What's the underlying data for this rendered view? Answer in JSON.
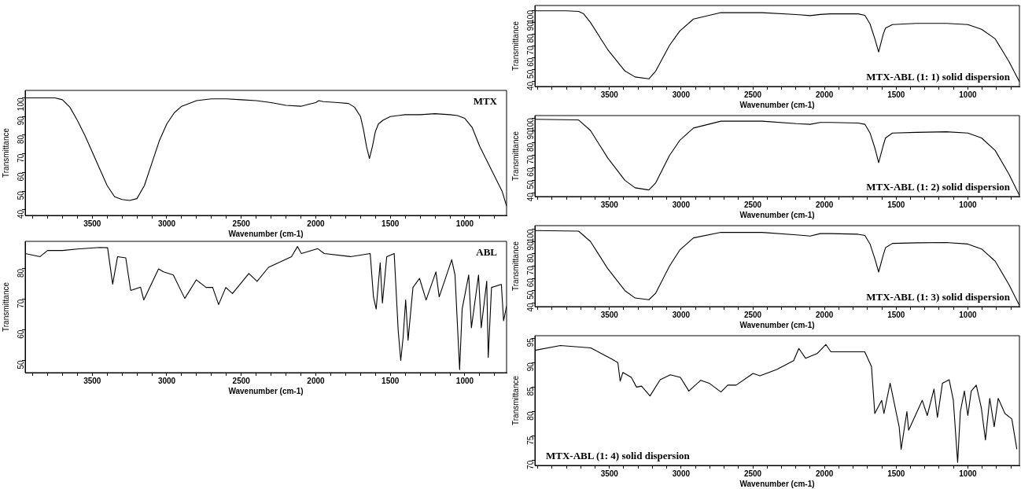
{
  "chart_data": [
    {
      "type": "line",
      "title": "MTX",
      "xlabel": "Wavenumber (cm-1)",
      "ylabel": "Transmittance",
      "marker": "none",
      "xlim": [
        3950,
        720
      ],
      "ylim": [
        37,
        104
      ],
      "xticks": [
        {
          "value": 3900,
          "label": null
        },
        {
          "value": 3800,
          "label": null
        },
        {
          "value": 3700,
          "label": null
        },
        {
          "value": 3600,
          "label": null
        },
        3500,
        {
          "value": 3400,
          "label": null
        },
        {
          "value": 3300,
          "label": null
        },
        {
          "value": 3200,
          "label": null
        },
        {
          "value": 3100,
          "label": null
        },
        3000,
        {
          "value": 2900,
          "label": null
        },
        {
          "value": 2800,
          "label": null
        },
        {
          "value": 2700,
          "label": null
        },
        {
          "value": 2600,
          "label": null
        },
        2500,
        {
          "value": 2400,
          "label": null
        },
        {
          "value": 2300,
          "label": null
        },
        {
          "value": 2200,
          "label": null
        },
        {
          "value": 2100,
          "label": null
        },
        2000,
        {
          "value": 1900,
          "label": null
        },
        {
          "value": 1800,
          "label": null
        },
        {
          "value": 1700,
          "label": null
        },
        {
          "value": 1600,
          "label": null
        },
        1500,
        {
          "value": 1400,
          "label": null
        },
        {
          "value": 1300,
          "label": null
        },
        {
          "value": 1200,
          "label": null
        },
        {
          "value": 1100,
          "label": null
        },
        1000,
        {
          "value": 900,
          "label": null
        },
        {
          "value": 800,
          "label": null
        }
      ],
      "yticks": [
        40,
        50,
        60,
        70,
        80,
        90,
        100
      ],
      "series": [
        {
          "color": "#000000",
          "x": [
            3950,
            3800,
            3750,
            3700,
            3650,
            3600,
            3550,
            3500,
            3450,
            3400,
            3350,
            3300,
            3250,
            3200,
            3150,
            3100,
            3050,
            3000,
            2950,
            2900,
            2800,
            2700,
            2600,
            2500,
            2400,
            2300,
            2200,
            2100,
            2050,
            2000,
            1980,
            1950,
            1850,
            1780,
            1740,
            1700,
            1680,
            1660,
            1640,
            1620,
            1600,
            1580,
            1550,
            1500,
            1400,
            1300,
            1200,
            1100,
            1050,
            1000,
            950,
            900,
            850,
            800,
            750,
            720
          ],
          "values": [
            100,
            100,
            100,
            99,
            95,
            88,
            80,
            71,
            62,
            53,
            47,
            45.5,
            45,
            46,
            53,
            65,
            77,
            86,
            92,
            95.5,
            98.5,
            99.5,
            99.5,
            99,
            98.5,
            97.5,
            96,
            95.5,
            96.5,
            97.5,
            98.5,
            98,
            97.5,
            97,
            95,
            90,
            83,
            74,
            67.5,
            74,
            82,
            86,
            88,
            90,
            91,
            91,
            91.5,
            91,
            90.5,
            89,
            84,
            74,
            66,
            58,
            50,
            42
          ]
        }
      ]
    },
    {
      "type": "line",
      "title": "ABL",
      "xlabel": "Wavenumber (cm-1)",
      "ylabel": "Transmittance",
      "marker": "none",
      "xlim": [
        3950,
        720
      ],
      "ylim": [
        46,
        89
      ],
      "xticks": [
        {
          "value": 3900,
          "label": null
        },
        {
          "value": 3800,
          "label": null
        },
        {
          "value": 3700,
          "label": null
        },
        {
          "value": 3600,
          "label": null
        },
        3500,
        {
          "value": 3400,
          "label": null
        },
        {
          "value": 3300,
          "label": null
        },
        {
          "value": 3200,
          "label": null
        },
        {
          "value": 3100,
          "label": null
        },
        3000,
        {
          "value": 2900,
          "label": null
        },
        {
          "value": 2800,
          "label": null
        },
        {
          "value": 2700,
          "label": null
        },
        {
          "value": 2600,
          "label": null
        },
        2500,
        {
          "value": 2400,
          "label": null
        },
        {
          "value": 2300,
          "label": null
        },
        {
          "value": 2200,
          "label": null
        },
        {
          "value": 2100,
          "label": null
        },
        2000,
        {
          "value": 1900,
          "label": null
        },
        {
          "value": 1800,
          "label": null
        },
        {
          "value": 1700,
          "label": null
        },
        {
          "value": 1600,
          "label": null
        },
        1500,
        {
          "value": 1400,
          "label": null
        },
        {
          "value": 1300,
          "label": null
        },
        {
          "value": 1200,
          "label": null
        },
        {
          "value": 1100,
          "label": null
        },
        1000,
        {
          "value": 900,
          "label": null
        },
        {
          "value": 800,
          "label": null
        }
      ],
      "yticks": [
        50,
        60,
        70,
        80
      ],
      "series": [
        {
          "color": "#000000",
          "x": [
            3950,
            3850,
            3800,
            3700,
            3600,
            3450,
            3397,
            3363,
            3330,
            3275,
            3242,
            3176,
            3154,
            3055,
            3022,
            2956,
            2879,
            2802,
            2736,
            2692,
            2652,
            2604,
            2559,
            2449,
            2394,
            2317,
            2163,
            2123,
            2097,
            1987,
            1943,
            1767,
            1635,
            1613,
            1595,
            1568,
            1553,
            1524,
            1474,
            1447,
            1430,
            1414,
            1397,
            1381,
            1348,
            1304,
            1260,
            1194,
            1172,
            1088,
            1066,
            1035,
            1018,
            974,
            956,
            908,
            890,
            853,
            843,
            821,
            755,
            740,
            720
          ],
          "values": [
            85,
            84,
            86,
            86,
            86.5,
            87,
            86.9,
            75,
            84,
            83.6,
            72.9,
            74,
            69.8,
            80,
            79,
            78,
            70.3,
            76.4,
            73.9,
            73.9,
            68.3,
            73.9,
            71.9,
            78.5,
            75.9,
            80.5,
            84,
            87.3,
            85,
            86.6,
            85,
            84,
            85,
            70.8,
            66.8,
            82,
            68.8,
            84,
            85,
            59.7,
            50,
            57.6,
            69.8,
            56.6,
            73.9,
            76.9,
            69.8,
            79,
            70.8,
            83,
            78,
            47,
            66.8,
            78,
            60.7,
            78,
            60.7,
            76,
            51,
            73.9,
            74.9,
            63,
            67.8
          ]
        }
      ]
    },
    {
      "type": "line",
      "title": "MTX-ABL (1: 1) solid dispersion",
      "xlabel": "Wavenumber (cm-1)",
      "ylabel": "Transmittance",
      "marker": "none",
      "xlim": [
        4020,
        640
      ],
      "ylim": [
        36,
        104
      ],
      "xticks": [
        {
          "value": 4000,
          "label": null
        },
        {
          "value": 3900,
          "label": null
        },
        {
          "value": 3800,
          "label": null
        },
        {
          "value": 3700,
          "label": null
        },
        {
          "value": 3600,
          "label": null
        },
        3500,
        {
          "value": 3400,
          "label": null
        },
        {
          "value": 3300,
          "label": null
        },
        {
          "value": 3200,
          "label": null
        },
        {
          "value": 3100,
          "label": null
        },
        3000,
        {
          "value": 2900,
          "label": null
        },
        {
          "value": 2800,
          "label": null
        },
        {
          "value": 2700,
          "label": null
        },
        {
          "value": 2600,
          "label": null
        },
        2500,
        {
          "value": 2400,
          "label": null
        },
        {
          "value": 2300,
          "label": null
        },
        {
          "value": 2200,
          "label": null
        },
        {
          "value": 2100,
          "label": null
        },
        2000,
        {
          "value": 1900,
          "label": null
        },
        {
          "value": 1800,
          "label": null
        },
        {
          "value": 1700,
          "label": null
        },
        {
          "value": 1600,
          "label": null
        },
        1500,
        {
          "value": 1400,
          "label": null
        },
        {
          "value": 1300,
          "label": null
        },
        {
          "value": 1200,
          "label": null
        },
        {
          "value": 1100,
          "label": null
        },
        1000,
        {
          "value": 900,
          "label": null
        },
        {
          "value": 800,
          "label": null
        },
        {
          "value": 700,
          "label": null
        }
      ],
      "yticks": [
        40,
        50,
        60,
        70,
        80,
        90,
        100
      ],
      "series": [
        {
          "color": "#000000",
          "x": [
            4020,
            3800,
            3715,
            3680,
            3632,
            3512,
            3392,
            3321,
            3225,
            3177,
            3081,
            3010,
            2914,
            2722,
            2435,
            2196,
            2100,
            2029,
            1957,
            1766,
            1718,
            1682,
            1646,
            1622,
            1590,
            1574,
            1526,
            1359,
            1150,
            1000,
            904,
            809,
            713,
            640
          ],
          "values": [
            99.5,
            99.5,
            99,
            97,
            89.7,
            67,
            49,
            44,
            42.4,
            49,
            70.5,
            82.5,
            92.6,
            98,
            98,
            96.4,
            95.5,
            96.5,
            97,
            97,
            95.7,
            88.5,
            75,
            65,
            80,
            85,
            88,
            89,
            89,
            88,
            84,
            76,
            57,
            40
          ]
        }
      ]
    },
    {
      "type": "line",
      "title": "MTX-ABL (1: 2) solid dispersion",
      "xlabel": "Wavenumber (cm-1)",
      "ylabel": "Transmittance",
      "marker": "none",
      "xlim": [
        4020,
        640
      ],
      "ylim": [
        37,
        102
      ],
      "xticks": [
        {
          "value": 4000,
          "label": null
        },
        {
          "value": 3900,
          "label": null
        },
        {
          "value": 3800,
          "label": null
        },
        {
          "value": 3700,
          "label": null
        },
        {
          "value": 3600,
          "label": null
        },
        3500,
        {
          "value": 3400,
          "label": null
        },
        {
          "value": 3300,
          "label": null
        },
        {
          "value": 3200,
          "label": null
        },
        {
          "value": 3100,
          "label": null
        },
        3000,
        {
          "value": 2900,
          "label": null
        },
        {
          "value": 2800,
          "label": null
        },
        {
          "value": 2700,
          "label": null
        },
        {
          "value": 2600,
          "label": null
        },
        2500,
        {
          "value": 2400,
          "label": null
        },
        {
          "value": 2300,
          "label": null
        },
        {
          "value": 2200,
          "label": null
        },
        {
          "value": 2100,
          "label": null
        },
        2000,
        {
          "value": 1900,
          "label": null
        },
        {
          "value": 1800,
          "label": null
        },
        {
          "value": 1700,
          "label": null
        },
        {
          "value": 1600,
          "label": null
        },
        1500,
        {
          "value": 1400,
          "label": null
        },
        {
          "value": 1300,
          "label": null
        },
        {
          "value": 1200,
          "label": null
        },
        {
          "value": 1100,
          "label": null
        },
        1000,
        {
          "value": 900,
          "label": null
        },
        {
          "value": 800,
          "label": null
        },
        {
          "value": 700,
          "label": null
        }
      ],
      "yticks": [
        40,
        50,
        60,
        70,
        80,
        90,
        100
      ],
      "series": [
        {
          "color": "#000000",
          "x": [
            4020,
            3715,
            3632,
            3512,
            3392,
            3321,
            3225,
            3177,
            3081,
            3010,
            2914,
            2722,
            2435,
            2196,
            2100,
            2029,
            1957,
            1766,
            1718,
            1682,
            1646,
            1622,
            1590,
            1574,
            1526,
            1359,
            1150,
            1000,
            904,
            809,
            713,
            640
          ],
          "values": [
            99,
            98.5,
            90,
            68,
            50,
            44,
            42.3,
            48,
            70,
            82,
            92,
            97.5,
            97.5,
            95.5,
            95,
            96.5,
            96.5,
            96,
            95,
            88,
            75,
            64.2,
            78,
            84,
            88,
            88.5,
            89,
            88,
            84,
            74,
            55,
            38
          ]
        }
      ]
    },
    {
      "type": "line",
      "title": "MTX-ABL (1: 3) solid dispersion",
      "xlabel": "Wavenumber (cm-1)",
      "ylabel": "Transmittance",
      "marker": "none",
      "xlim": [
        4020,
        640
      ],
      "ylim": [
        37,
        103
      ],
      "xticks": [
        {
          "value": 4000,
          "label": null
        },
        {
          "value": 3900,
          "label": null
        },
        {
          "value": 3800,
          "label": null
        },
        {
          "value": 3700,
          "label": null
        },
        {
          "value": 3600,
          "label": null
        },
        3500,
        {
          "value": 3400,
          "label": null
        },
        {
          "value": 3300,
          "label": null
        },
        {
          "value": 3200,
          "label": null
        },
        {
          "value": 3100,
          "label": null
        },
        3000,
        {
          "value": 2900,
          "label": null
        },
        {
          "value": 2800,
          "label": null
        },
        {
          "value": 2700,
          "label": null
        },
        {
          "value": 2600,
          "label": null
        },
        2500,
        {
          "value": 2400,
          "label": null
        },
        {
          "value": 2300,
          "label": null
        },
        {
          "value": 2200,
          "label": null
        },
        {
          "value": 2100,
          "label": null
        },
        2000,
        {
          "value": 1900,
          "label": null
        },
        {
          "value": 1800,
          "label": null
        },
        {
          "value": 1700,
          "label": null
        },
        {
          "value": 1600,
          "label": null
        },
        1500,
        {
          "value": 1400,
          "label": null
        },
        {
          "value": 1300,
          "label": null
        },
        {
          "value": 1200,
          "label": null
        },
        {
          "value": 1100,
          "label": null
        },
        1000,
        {
          "value": 900,
          "label": null
        },
        {
          "value": 800,
          "label": null
        },
        {
          "value": 700,
          "label": null
        }
      ],
      "yticks": [
        40,
        50,
        60,
        70,
        80,
        90,
        100
      ],
      "series": [
        {
          "color": "#000000",
          "x": [
            4020,
            3715,
            3632,
            3512,
            3392,
            3321,
            3225,
            3177,
            3081,
            3010,
            2914,
            2722,
            2435,
            2196,
            2100,
            2029,
            1957,
            1766,
            1718,
            1682,
            1646,
            1622,
            1590,
            1574,
            1526,
            1359,
            1150,
            1000,
            904,
            809,
            713,
            640
          ],
          "values": [
            99,
            98.5,
            90,
            68,
            50,
            44,
            42.6,
            48,
            70,
            83,
            93,
            97.5,
            97.5,
            95.5,
            94.5,
            96.5,
            96.5,
            96,
            95,
            88,
            75,
            65.2,
            79,
            85,
            88.5,
            89,
            89.2,
            88,
            84,
            74,
            55,
            38
          ]
        }
      ]
    },
    {
      "type": "line",
      "title": "MTX-ABL (1: 4) solid dispersion",
      "xlabel": "Wavenumber (cm-1)",
      "ylabel": "Transmittance",
      "marker": "none",
      "xlim": [
        4020,
        640
      ],
      "ylim": [
        69,
        95.5
      ],
      "xticks": [
        {
          "value": 4000,
          "label": null
        },
        {
          "value": 3900,
          "label": null
        },
        {
          "value": 3800,
          "label": null
        },
        {
          "value": 3700,
          "label": null
        },
        {
          "value": 3600,
          "label": null
        },
        3500,
        {
          "value": 3400,
          "label": null
        },
        {
          "value": 3300,
          "label": null
        },
        {
          "value": 3200,
          "label": null
        },
        {
          "value": 3100,
          "label": null
        },
        3000,
        {
          "value": 2900,
          "label": null
        },
        {
          "value": 2800,
          "label": null
        },
        {
          "value": 2700,
          "label": null
        },
        {
          "value": 2600,
          "label": null
        },
        2500,
        {
          "value": 2400,
          "label": null
        },
        {
          "value": 2300,
          "label": null
        },
        {
          "value": 2200,
          "label": null
        },
        {
          "value": 2100,
          "label": null
        },
        2000,
        {
          "value": 1900,
          "label": null
        },
        {
          "value": 1800,
          "label": null
        },
        {
          "value": 1700,
          "label": null
        },
        {
          "value": 1600,
          "label": null
        },
        1500,
        {
          "value": 1400,
          "label": null
        },
        {
          "value": 1300,
          "label": null
        },
        {
          "value": 1200,
          "label": null
        },
        {
          "value": 1100,
          "label": null
        },
        1000,
        {
          "value": 900,
          "label": null
        },
        {
          "value": 800,
          "label": null
        },
        {
          "value": 700,
          "label": null
        }
      ],
      "yticks": [
        70,
        75,
        80,
        85,
        90,
        95
      ],
      "series": [
        {
          "color": "#000000",
          "x": [
            4020,
            3842,
            3630,
            3488,
            3441,
            3425,
            3406,
            3347,
            3311,
            3276,
            3217,
            3146,
            3075,
            3005,
            2946,
            2863,
            2804,
            2722,
            2675,
            2616,
            2498,
            2450,
            2333,
            2215,
            2179,
            2132,
            2049,
            1990,
            1955,
            1719,
            1672,
            1649,
            1601,
            1585,
            1542,
            1479,
            1465,
            1425,
            1413,
            1318,
            1283,
            1236,
            1212,
            1177,
            1130,
            1101,
            1071,
            1052,
            1024,
            1000,
            976,
            941,
            906,
            877,
            847,
            816,
            788,
            741,
            693,
            658
          ],
          "values": [
            92.5,
            93.5,
            93,
            90.8,
            90,
            86.2,
            88,
            87,
            85,
            85.2,
            83.2,
            86.5,
            87.5,
            87,
            84.2,
            86.4,
            85.8,
            84,
            85.4,
            85.4,
            87.8,
            87.3,
            88.6,
            90.4,
            92.9,
            90.9,
            91.9,
            93.7,
            92.2,
            92.2,
            89.2,
            79.6,
            82.3,
            79.6,
            85.8,
            76.9,
            72.3,
            80,
            76.2,
            82.3,
            79.2,
            84.6,
            78.8,
            85.8,
            86.5,
            82.3,
            69.6,
            80,
            84.2,
            79.2,
            84.2,
            85.4,
            80.8,
            74.2,
            82.7,
            76.9,
            82.7,
            79.6,
            78.5,
            72.3
          ]
        }
      ]
    }
  ]
}
